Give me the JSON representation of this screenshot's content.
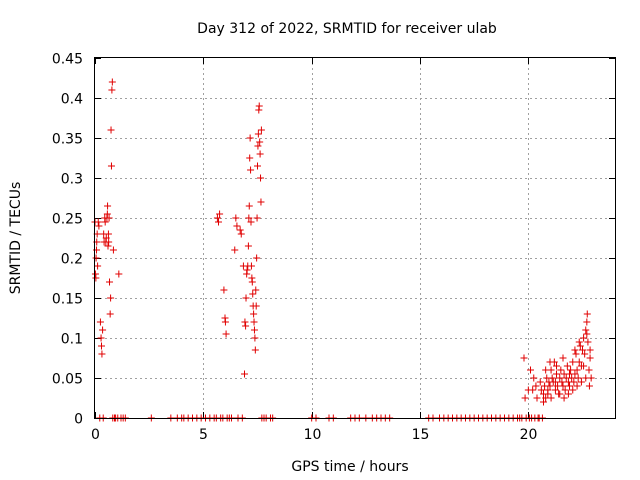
{
  "chart_data": {
    "type": "scatter",
    "title": "Day 312 of 2022, SRMTID for receiver ulab",
    "xlabel": "GPS time / hours",
    "ylabel": "SRMTID / TECUs",
    "xlim": [
      0,
      24
    ],
    "ylim": [
      0,
      0.45
    ],
    "grid": true,
    "marker": "+",
    "color": "#e00000",
    "x_ticks": [
      {
        "value": 0,
        "label": "0"
      },
      {
        "value": 5,
        "label": "5"
      },
      {
        "value": 10,
        "label": "10"
      },
      {
        "value": 15,
        "label": "15"
      },
      {
        "value": 20,
        "label": "20"
      }
    ],
    "y_ticks": [
      {
        "value": 0,
        "label": "0"
      },
      {
        "value": 0.05,
        "label": "0.05"
      },
      {
        "value": 0.1,
        "label": "0.1"
      },
      {
        "value": 0.15,
        "label": "0.15"
      },
      {
        "value": 0.2,
        "label": "0.2"
      },
      {
        "value": 0.25,
        "label": "0.25"
      },
      {
        "value": 0.3,
        "label": "0.3"
      },
      {
        "value": 0.35,
        "label": "0.35"
      },
      {
        "value": 0.4,
        "label": "0.4"
      },
      {
        "value": 0.45,
        "label": "0.45"
      }
    ],
    "series": [
      {
        "name": "SRMTID",
        "points": [
          [
            0.0,
            0.245
          ],
          [
            0.02,
            0.18
          ],
          [
            0.04,
            0.175
          ],
          [
            0.05,
            0.2
          ],
          [
            0.07,
            0.21
          ],
          [
            0.08,
            0.22
          ],
          [
            0.1,
            0.23
          ],
          [
            0.12,
            0.19
          ],
          [
            0.15,
            0.245
          ],
          [
            0.18,
            0.24
          ],
          [
            0.22,
            0.0
          ],
          [
            0.25,
            0.12
          ],
          [
            0.28,
            0.1
          ],
          [
            0.3,
            0.09
          ],
          [
            0.32,
            0.08
          ],
          [
            0.35,
            0.11
          ],
          [
            0.38,
            0.0
          ],
          [
            0.4,
            0.23
          ],
          [
            0.42,
            0.22
          ],
          [
            0.45,
            0.25
          ],
          [
            0.47,
            0.245
          ],
          [
            0.5,
            0.22
          ],
          [
            0.52,
            0.225
          ],
          [
            0.55,
            0.25
          ],
          [
            0.57,
            0.255
          ],
          [
            0.58,
            0.265
          ],
          [
            0.6,
            0.215
          ],
          [
            0.62,
            0.23
          ],
          [
            0.63,
            0.22
          ],
          [
            0.65,
            0.25
          ],
          [
            0.67,
            0.17
          ],
          [
            0.7,
            0.13
          ],
          [
            0.72,
            0.15
          ],
          [
            0.74,
            0.36
          ],
          [
            0.76,
            0.315
          ],
          [
            0.78,
            0.41
          ],
          [
            0.8,
            0.42
          ],
          [
            0.82,
            0.0
          ],
          [
            0.85,
            0.21
          ],
          [
            0.9,
            0.0
          ],
          [
            0.95,
            0.0
          ],
          [
            1.05,
            0.0
          ],
          [
            1.1,
            0.18
          ],
          [
            1.2,
            0.0
          ],
          [
            1.3,
            0.0
          ],
          [
            1.4,
            0.0
          ],
          [
            2.6,
            0.0
          ],
          [
            3.5,
            0.0
          ],
          [
            3.8,
            0.0
          ],
          [
            4.0,
            0.0
          ],
          [
            4.1,
            0.0
          ],
          [
            4.3,
            0.0
          ],
          [
            4.5,
            0.0
          ],
          [
            4.7,
            0.0
          ],
          [
            4.9,
            0.0
          ],
          [
            5.1,
            0.0
          ],
          [
            5.3,
            0.0
          ],
          [
            5.5,
            0.0
          ],
          [
            5.6,
            0.0
          ],
          [
            5.65,
            0.25
          ],
          [
            5.7,
            0.245
          ],
          [
            5.75,
            0.255
          ],
          [
            5.8,
            0.0
          ],
          [
            5.9,
            0.0
          ],
          [
            5.95,
            0.16
          ],
          [
            6.0,
            0.125
          ],
          [
            6.02,
            0.12
          ],
          [
            6.05,
            0.105
          ],
          [
            6.1,
            0.0
          ],
          [
            6.2,
            0.0
          ],
          [
            6.3,
            0.0
          ],
          [
            6.45,
            0.21
          ],
          [
            6.5,
            0.25
          ],
          [
            6.55,
            0.24
          ],
          [
            6.6,
            0.0
          ],
          [
            6.7,
            0.235
          ],
          [
            6.75,
            0.23
          ],
          [
            6.8,
            0.0
          ],
          [
            6.85,
            0.19
          ],
          [
            6.9,
            0.055
          ],
          [
            6.92,
            0.12
          ],
          [
            6.95,
            0.115
          ],
          [
            6.97,
            0.15
          ],
          [
            7.0,
            0.18
          ],
          [
            7.02,
            0.185
          ],
          [
            7.05,
            0.19
          ],
          [
            7.08,
            0.215
          ],
          [
            7.1,
            0.25
          ],
          [
            7.12,
            0.265
          ],
          [
            7.14,
            0.325
          ],
          [
            7.16,
            0.35
          ],
          [
            7.18,
            0.31
          ],
          [
            7.2,
            0.245
          ],
          [
            7.22,
            0.19
          ],
          [
            7.24,
            0.175
          ],
          [
            7.26,
            0.17
          ],
          [
            7.28,
            0.155
          ],
          [
            7.3,
            0.14
          ],
          [
            7.32,
            0.13
          ],
          [
            7.34,
            0.12
          ],
          [
            7.36,
            0.11
          ],
          [
            7.38,
            0.1
          ],
          [
            7.4,
            0.085
          ],
          [
            7.42,
            0.16
          ],
          [
            7.44,
            0.14
          ],
          [
            7.46,
            0.2
          ],
          [
            7.48,
            0.25
          ],
          [
            7.5,
            0.315
          ],
          [
            7.52,
            0.34
          ],
          [
            7.54,
            0.355
          ],
          [
            7.56,
            0.385
          ],
          [
            7.58,
            0.39
          ],
          [
            7.6,
            0.345
          ],
          [
            7.62,
            0.33
          ],
          [
            7.64,
            0.3
          ],
          [
            7.66,
            0.27
          ],
          [
            7.68,
            0.36
          ],
          [
            7.7,
            0.0
          ],
          [
            7.8,
            0.0
          ],
          [
            7.9,
            0.0
          ],
          [
            8.1,
            0.0
          ],
          [
            8.2,
            0.0
          ],
          [
            10.0,
            0.0
          ],
          [
            10.2,
            0.0
          ],
          [
            10.8,
            0.0
          ],
          [
            11.0,
            0.0
          ],
          [
            11.8,
            0.0
          ],
          [
            12.0,
            0.0
          ],
          [
            12.2,
            0.0
          ],
          [
            12.5,
            0.0
          ],
          [
            12.8,
            0.0
          ],
          [
            13.0,
            0.0
          ],
          [
            13.2,
            0.0
          ],
          [
            13.4,
            0.0
          ],
          [
            13.6,
            0.0
          ],
          [
            15.4,
            0.0
          ],
          [
            15.6,
            0.0
          ],
          [
            15.9,
            0.0
          ],
          [
            16.1,
            0.0
          ],
          [
            16.3,
            0.0
          ],
          [
            16.5,
            0.0
          ],
          [
            16.7,
            0.0
          ],
          [
            16.9,
            0.0
          ],
          [
            17.1,
            0.0
          ],
          [
            17.3,
            0.0
          ],
          [
            17.5,
            0.0
          ],
          [
            17.7,
            0.0
          ],
          [
            17.9,
            0.0
          ],
          [
            18.1,
            0.0
          ],
          [
            18.3,
            0.0
          ],
          [
            18.5,
            0.0
          ],
          [
            18.7,
            0.0
          ],
          [
            18.9,
            0.0
          ],
          [
            19.1,
            0.0
          ],
          [
            19.3,
            0.0
          ],
          [
            19.5,
            0.0
          ],
          [
            19.6,
            0.0
          ],
          [
            19.7,
            0.0
          ],
          [
            19.8,
            0.075
          ],
          [
            19.85,
            0.025
          ],
          [
            19.9,
            0.0
          ],
          [
            20.0,
            0.035
          ],
          [
            20.05,
            0.0
          ],
          [
            20.1,
            0.06
          ],
          [
            20.15,
            0.0
          ],
          [
            20.2,
            0.035
          ],
          [
            20.25,
            0.05
          ],
          [
            20.3,
            0.0
          ],
          [
            20.35,
            0.04
          ],
          [
            20.4,
            0.025
          ],
          [
            20.45,
            0.0
          ],
          [
            20.5,
            0.0
          ],
          [
            20.55,
            0.045
          ],
          [
            20.6,
            0.035
          ],
          [
            20.65,
            0.0
          ],
          [
            20.7,
            0.03
          ],
          [
            20.75,
            0.04
          ],
          [
            20.8,
            0.025
          ],
          [
            20.85,
            0.05
          ],
          [
            20.9,
            0.03
          ],
          [
            20.95,
            0.045
          ],
          [
            21.0,
            0.04
          ],
          [
            21.05,
            0.06
          ],
          [
            21.1,
            0.05
          ],
          [
            21.15,
            0.045
          ],
          [
            21.2,
            0.07
          ],
          [
            21.25,
            0.035
          ],
          [
            21.3,
            0.055
          ],
          [
            21.35,
            0.04
          ],
          [
            21.4,
            0.03
          ],
          [
            21.45,
            0.05
          ],
          [
            21.5,
            0.06
          ],
          [
            21.55,
            0.045
          ],
          [
            21.6,
            0.04
          ],
          [
            21.65,
            0.055
          ],
          [
            21.7,
            0.035
          ],
          [
            21.75,
            0.05
          ],
          [
            21.8,
            0.065
          ],
          [
            21.85,
            0.045
          ],
          [
            21.9,
            0.04
          ],
          [
            21.95,
            0.06
          ],
          [
            22.0,
            0.05
          ],
          [
            22.05,
            0.07
          ],
          [
            22.1,
            0.045
          ],
          [
            22.15,
            0.055
          ],
          [
            22.2,
            0.08
          ],
          [
            22.25,
            0.06
          ],
          [
            22.3,
            0.05
          ],
          [
            22.35,
            0.07
          ],
          [
            22.4,
            0.09
          ],
          [
            22.45,
            0.065
          ],
          [
            22.5,
            0.085
          ],
          [
            22.55,
            0.1
          ],
          [
            22.6,
            0.08
          ],
          [
            22.65,
            0.11
          ],
          [
            22.7,
            0.12
          ],
          [
            22.72,
            0.13
          ],
          [
            22.75,
            0.095
          ],
          [
            22.8,
            0.06
          ],
          [
            22.85,
            0.075
          ],
          [
            22.9,
            0.05
          ],
          [
            20.7,
            0.02
          ],
          [
            20.9,
            0.035
          ],
          [
            21.05,
            0.025
          ],
          [
            21.25,
            0.045
          ],
          [
            21.45,
            0.03
          ],
          [
            21.65,
            0.025
          ],
          [
            21.85,
            0.03
          ],
          [
            22.05,
            0.035
          ],
          [
            22.25,
            0.04
          ],
          [
            22.45,
            0.045
          ],
          [
            22.65,
            0.05
          ],
          [
            22.82,
            0.04
          ],
          [
            20.8,
            0.06
          ],
          [
            21.0,
            0.07
          ],
          [
            21.3,
            0.065
          ],
          [
            21.6,
            0.075
          ],
          [
            21.9,
            0.055
          ],
          [
            22.15,
            0.085
          ],
          [
            22.35,
            0.095
          ],
          [
            22.55,
            0.065
          ],
          [
            22.7,
            0.105
          ],
          [
            22.85,
            0.085
          ]
        ]
      }
    ]
  }
}
